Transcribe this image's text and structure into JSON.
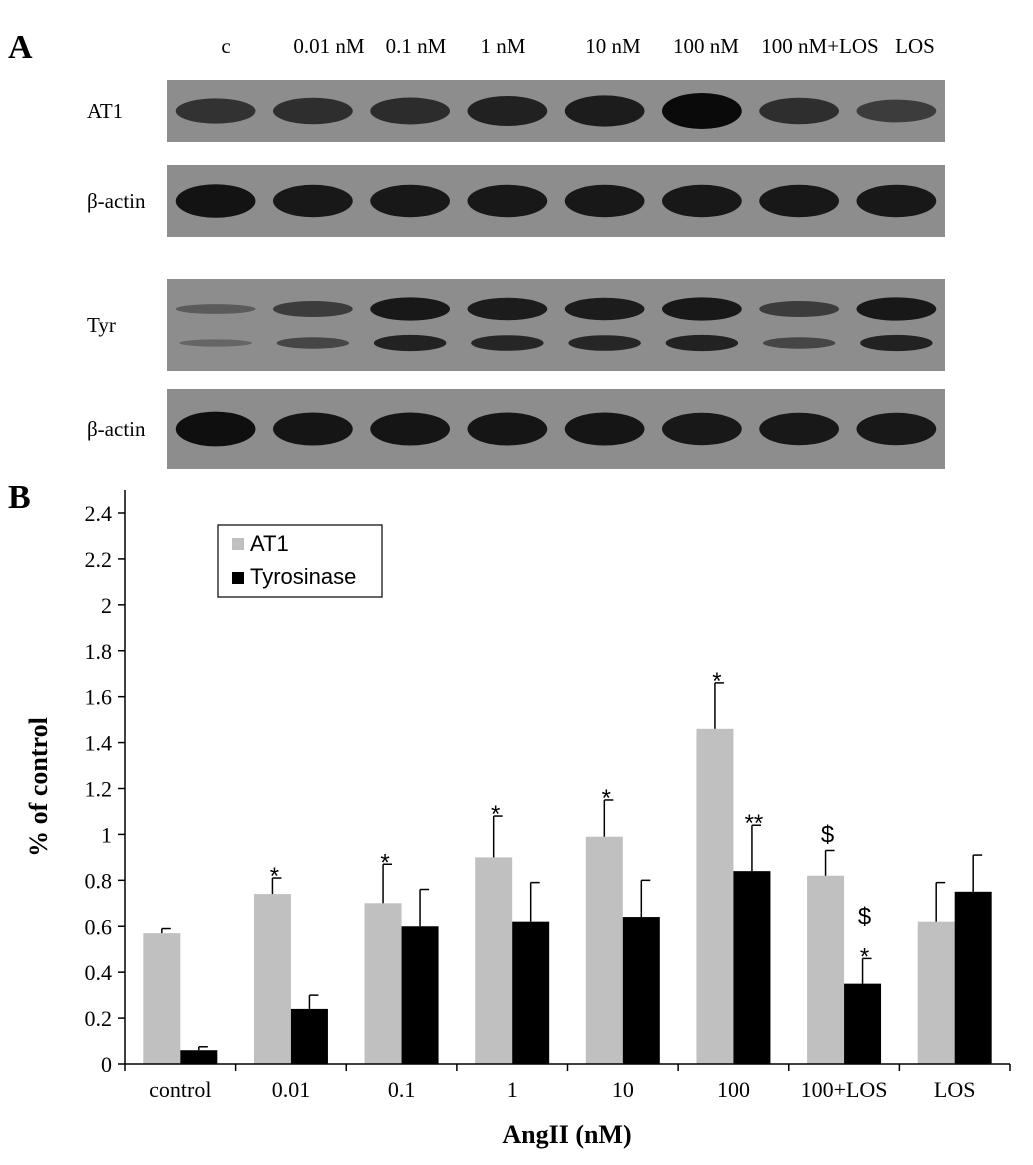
{
  "panel_a": {
    "letter": "A",
    "lanes": [
      "c",
      "0.01 nM",
      "0.1 nM",
      "1 nM",
      "10 nM",
      "100 nM",
      "100 nM+LOS",
      "LOS"
    ],
    "blots": [
      {
        "label": "AT1",
        "bands": [
          0.55,
          0.6,
          0.62,
          0.75,
          0.8,
          1.0,
          0.6,
          0.45
        ]
      },
      {
        "label": "β-actin",
        "bands": [
          0.9,
          0.85,
          0.85,
          0.85,
          0.85,
          0.85,
          0.85,
          0.85
        ]
      },
      {
        "label": "Tyr",
        "bands": [
          0.1,
          0.45,
          0.85,
          0.8,
          0.8,
          0.85,
          0.45,
          0.85
        ]
      },
      {
        "label": "β-actin",
        "bands": [
          0.95,
          0.88,
          0.88,
          0.88,
          0.88,
          0.85,
          0.85,
          0.85
        ]
      }
    ]
  },
  "chart_data": {
    "type": "bar",
    "panel_letter": "B",
    "categories": [
      "control",
      "0.01",
      "0.1",
      "1",
      "10",
      "100",
      "100+LOS",
      "LOS"
    ],
    "series": [
      {
        "name": "AT1",
        "color": "#c0c0c0",
        "values": [
          0.57,
          0.74,
          0.7,
          0.9,
          0.99,
          1.46,
          0.82,
          0.62
        ],
        "errors": [
          0.02,
          0.07,
          0.17,
          0.18,
          0.16,
          0.2,
          0.11,
          0.17
        ],
        "annotations": [
          "",
          "*",
          "*",
          "*",
          "*",
          "*",
          "$",
          ""
        ]
      },
      {
        "name": "Tyrosinase",
        "color": "#000000",
        "values": [
          0.06,
          0.24,
          0.6,
          0.62,
          0.64,
          0.84,
          0.35,
          0.75
        ],
        "errors": [
          0.015,
          0.06,
          0.16,
          0.17,
          0.16,
          0.2,
          0.11,
          0.16
        ],
        "annotations": [
          "",
          "",
          "",
          "",
          "",
          "**",
          "$\n*",
          ""
        ]
      }
    ],
    "xlabel": "AngII (nM)",
    "ylabel": "% of control",
    "ylim": [
      0,
      2.4
    ],
    "yticks": [
      "0",
      "0.2",
      "0.4",
      "0.6",
      "0.8",
      "1",
      "1.2",
      "1.4",
      "1.6",
      "1.8",
      "2",
      "2.2",
      "2.4"
    ],
    "grid": false,
    "legend_position": "top-left"
  }
}
